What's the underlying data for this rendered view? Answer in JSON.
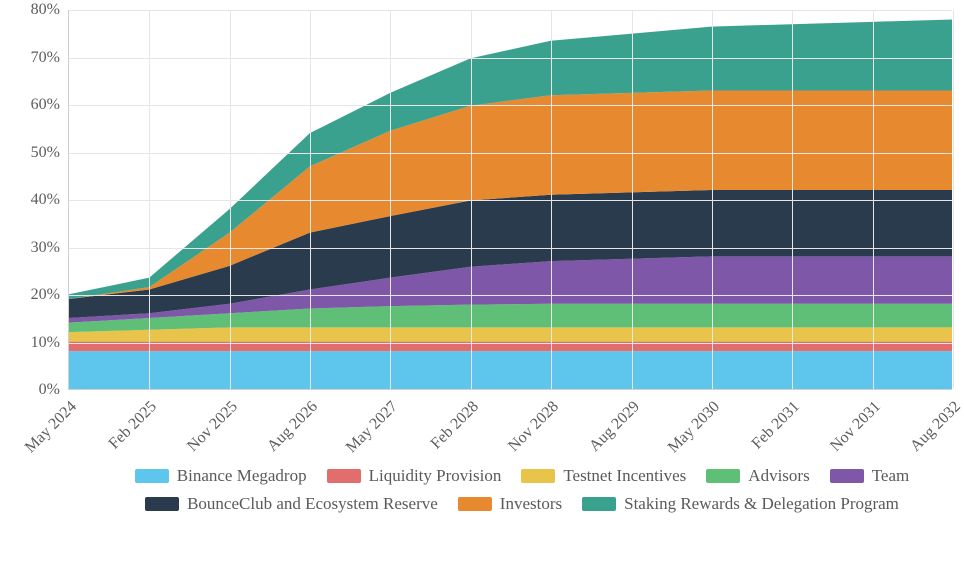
{
  "chart": {
    "type": "stacked-area",
    "background_color": "#ffffff",
    "grid_color": "#e6e6e6",
    "axis_color": "#cfcfcf",
    "label_color": "#5c5c5c",
    "label_fontsize": 16,
    "x_labels": [
      "May 2024",
      "Feb 2025",
      "Nov 2025",
      "Aug 2026",
      "May 2027",
      "Feb 2028",
      "Nov 2028",
      "Aug 2029",
      "May 2030",
      "Feb 2031",
      "Nov 2031",
      "Aug 2032"
    ],
    "ylim": [
      0,
      80
    ],
    "ytick_step": 10,
    "y_suffix": "%",
    "series": [
      {
        "name": "Binance Megadrop",
        "color": "#5ec5ed",
        "values": [
          8.0,
          8.0,
          8.0,
          8.0,
          8.0,
          8.0,
          8.0,
          8.0,
          8.0,
          8.0,
          8.0,
          8.0
        ]
      },
      {
        "name": "Liquidity Provision",
        "color": "#e26d6d",
        "values": [
          2.0,
          2.0,
          2.0,
          2.0,
          2.0,
          2.0,
          2.0,
          2.0,
          2.0,
          2.0,
          2.0,
          2.0
        ]
      },
      {
        "name": "Testnet Incentives",
        "color": "#e8c44b",
        "values": [
          2.0,
          2.5,
          3.0,
          3.0,
          3.0,
          3.0,
          3.0,
          3.0,
          3.0,
          3.0,
          3.0,
          3.0
        ]
      },
      {
        "name": "Advisors",
        "color": "#5fbf77",
        "values": [
          2.0,
          2.5,
          3.0,
          4.0,
          4.5,
          4.8,
          5.0,
          5.0,
          5.0,
          5.0,
          5.0,
          5.0
        ]
      },
      {
        "name": "Team",
        "color": "#7e57a8",
        "values": [
          1.0,
          1.0,
          2.0,
          4.0,
          6.0,
          8.0,
          9.0,
          9.5,
          10.0,
          10.0,
          10.0,
          10.0
        ]
      },
      {
        "name": "BounceClub and Ecosystem Reserve",
        "color": "#2b3b4e",
        "values": [
          4.0,
          5.0,
          8.0,
          12.0,
          13.0,
          14.0,
          14.0,
          14.0,
          14.0,
          14.0,
          14.0,
          14.0
        ]
      },
      {
        "name": "Investors",
        "color": "#e78a2f",
        "values": [
          0.0,
          0.5,
          7.0,
          14.0,
          18.0,
          20.0,
          21.0,
          21.0,
          21.0,
          21.0,
          21.0,
          21.0
        ]
      },
      {
        "name": "Staking Rewards & Delegation Program",
        "color": "#3aa18f",
        "values": [
          1.0,
          2.0,
          5.0,
          7.0,
          8.0,
          10.0,
          11.5,
          12.5,
          13.5,
          14.0,
          14.5,
          15.0
        ]
      }
    ],
    "legend_fontsize": 17
  }
}
